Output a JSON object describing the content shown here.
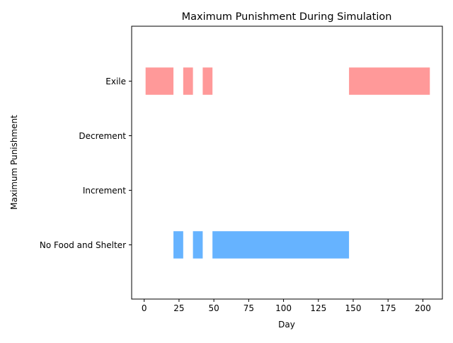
{
  "chart_data": {
    "type": "bar",
    "orientation": "horizontal",
    "title": "Maximum Punishment During Simulation",
    "xlabel": "Day",
    "ylabel": "Maximum Punishment",
    "xlim": [
      -9,
      214
    ],
    "xticks": [
      0,
      25,
      50,
      75,
      100,
      125,
      150,
      175,
      200
    ],
    "categories": [
      "No Food and Shelter",
      "Increment",
      "Decrement",
      "Exile"
    ],
    "grid": false,
    "legend": "none",
    "series": [
      {
        "category": "Exile",
        "color": "#ff9999",
        "intervals": [
          [
            1,
            21
          ],
          [
            28,
            35
          ],
          [
            42,
            49
          ],
          [
            147,
            205
          ]
        ]
      },
      {
        "category": "No Food and Shelter",
        "color": "#66b3ff",
        "intervals": [
          [
            21,
            28
          ],
          [
            35,
            42
          ],
          [
            49,
            147
          ]
        ]
      }
    ]
  }
}
